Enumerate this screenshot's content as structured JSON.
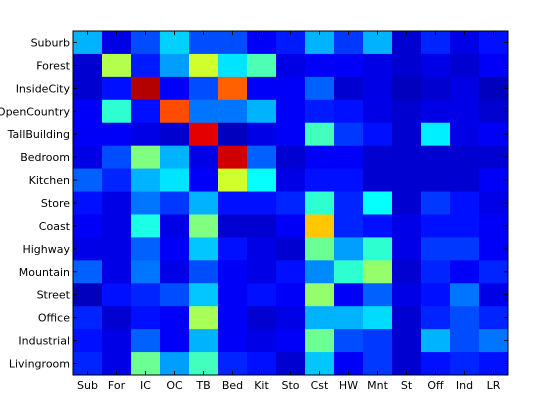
{
  "chart_data": {
    "type": "heatmap",
    "title": "",
    "xlabel": "",
    "ylabel": "",
    "x_categories": [
      "Sub",
      "For",
      "IC",
      "OC",
      "TB",
      "Bed",
      "Kit",
      "Sto",
      "Cst",
      "HW",
      "Mnt",
      "St",
      "Off",
      "Ind",
      "LR"
    ],
    "y_categories": [
      "Suburb",
      "Forest",
      "InsideCity",
      "OpenCountry",
      "TallBuilding",
      "Bedroom",
      "Kitchen",
      "Store",
      "Coast",
      "Highway",
      "Mountain",
      "Street",
      "Office",
      "Industrial",
      "Livingroom"
    ],
    "colormap": "jet",
    "value_range": [
      0,
      1
    ],
    "values": [
      [
        0.3,
        0.1,
        0.2,
        0.33,
        0.2,
        0.2,
        0.12,
        0.15,
        0.3,
        0.18,
        0.3,
        0.08,
        0.16,
        0.1,
        0.14
      ],
      [
        0.08,
        0.55,
        0.15,
        0.28,
        0.58,
        0.35,
        0.45,
        0.1,
        0.12,
        0.12,
        0.1,
        0.08,
        0.1,
        0.08,
        0.12
      ],
      [
        0.08,
        0.14,
        0.95,
        0.12,
        0.2,
        0.78,
        0.12,
        0.12,
        0.22,
        0.08,
        0.1,
        0.06,
        0.08,
        0.1,
        0.06
      ],
      [
        0.12,
        0.42,
        0.14,
        0.8,
        0.24,
        0.24,
        0.3,
        0.12,
        0.15,
        0.14,
        0.1,
        0.08,
        0.1,
        0.1,
        0.08
      ],
      [
        0.12,
        0.12,
        0.1,
        0.08,
        0.9,
        0.06,
        0.1,
        0.12,
        0.44,
        0.18,
        0.14,
        0.08,
        0.36,
        0.1,
        0.12
      ],
      [
        0.1,
        0.2,
        0.5,
        0.3,
        0.1,
        0.92,
        0.22,
        0.08,
        0.12,
        0.12,
        0.08,
        0.08,
        0.08,
        0.08,
        0.08
      ],
      [
        0.22,
        0.16,
        0.3,
        0.35,
        0.12,
        0.58,
        0.38,
        0.1,
        0.14,
        0.14,
        0.08,
        0.08,
        0.08,
        0.08,
        0.12
      ],
      [
        0.14,
        0.1,
        0.24,
        0.18,
        0.3,
        0.14,
        0.14,
        0.16,
        0.42,
        0.16,
        0.38,
        0.08,
        0.18,
        0.14,
        0.1
      ],
      [
        0.12,
        0.1,
        0.4,
        0.1,
        0.5,
        0.08,
        0.08,
        0.12,
        0.68,
        0.16,
        0.14,
        0.1,
        0.14,
        0.14,
        0.12
      ],
      [
        0.1,
        0.1,
        0.22,
        0.12,
        0.32,
        0.14,
        0.1,
        0.08,
        0.48,
        0.28,
        0.42,
        0.1,
        0.18,
        0.18,
        0.12
      ],
      [
        0.22,
        0.1,
        0.24,
        0.1,
        0.2,
        0.12,
        0.1,
        0.14,
        0.26,
        0.42,
        0.52,
        0.08,
        0.16,
        0.12,
        0.16
      ],
      [
        0.06,
        0.14,
        0.16,
        0.2,
        0.32,
        0.12,
        0.14,
        0.12,
        0.52,
        0.12,
        0.22,
        0.1,
        0.14,
        0.24,
        0.1
      ],
      [
        0.16,
        0.08,
        0.14,
        0.12,
        0.54,
        0.12,
        0.08,
        0.1,
        0.3,
        0.3,
        0.34,
        0.08,
        0.16,
        0.2,
        0.16
      ],
      [
        0.14,
        0.1,
        0.22,
        0.12,
        0.3,
        0.12,
        0.1,
        0.12,
        0.48,
        0.2,
        0.18,
        0.08,
        0.3,
        0.2,
        0.24
      ],
      [
        0.16,
        0.1,
        0.48,
        0.28,
        0.44,
        0.16,
        0.14,
        0.08,
        0.32,
        0.12,
        0.18,
        0.08,
        0.14,
        0.16,
        0.14
      ]
    ]
  }
}
